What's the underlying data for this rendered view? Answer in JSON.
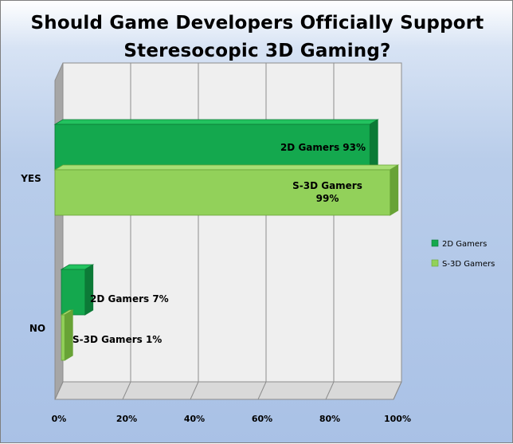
{
  "title_lines": [
    "Should Game Developers Officially Support",
    "Steresocopic 3D Gaming?"
  ],
  "colors": {
    "series_2d": "#14a84e",
    "series_2d_dark": "#0c7a37",
    "series_2d_top": "#22c25f",
    "series_s3d": "#92d15a",
    "series_s3d_dark": "#68a336",
    "series_s3d_top": "#a8df75",
    "wall": "#efefef",
    "wall_side": "#a6a6a6",
    "floor": "#d9d9d9",
    "grid": "#8c8c8c"
  },
  "chart_data": {
    "type": "bar",
    "orientation": "horizontal",
    "style": "3d",
    "title": "Should Game Developers Officially Support Steresocopic 3D Gaming?",
    "categories": [
      "YES",
      "NO"
    ],
    "series": [
      {
        "name": "2D Gamers",
        "values": [
          93,
          7
        ],
        "labels": [
          "2D Gamers 93%",
          "2D Gamers 7%"
        ]
      },
      {
        "name": "S-3D Gamers",
        "values": [
          99,
          1
        ],
        "labels": [
          "S-3D Gamers 99%",
          "S-3D Gamers 1%"
        ]
      }
    ],
    "xlim": [
      0,
      100
    ],
    "x_ticks": [
      "0%",
      "20%",
      "40%",
      "60%",
      "80%",
      "100%"
    ],
    "grid": true,
    "legend": "right"
  }
}
